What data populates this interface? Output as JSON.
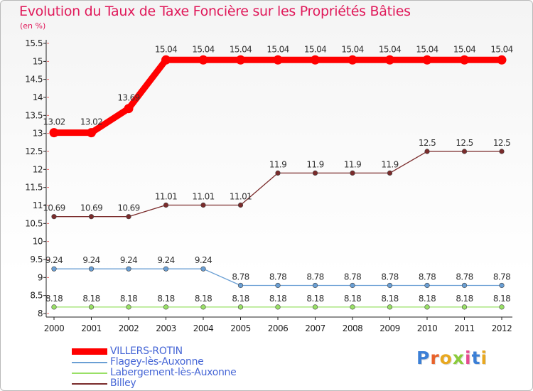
{
  "chart_data": {
    "type": "line",
    "title": "Evolution du Taux de Taxe Foncière sur les Propriétés Bâties",
    "unit_label": "(en %)",
    "categories": [
      "2000",
      "2001",
      "2002",
      "2003",
      "2004",
      "2005",
      "2006",
      "2007",
      "2008",
      "2009",
      "2010",
      "2011",
      "2012"
    ],
    "ylim": [
      8,
      15.5
    ],
    "yticks": [
      8,
      8.5,
      9,
      9.5,
      10,
      10.5,
      11,
      11.5,
      12,
      12.5,
      13,
      13.5,
      14,
      14.5,
      15,
      15.5
    ],
    "ytick_labels": [
      "8",
      "8.5",
      "9",
      "9.5",
      "10",
      "10.5",
      "11",
      "11.5",
      "12",
      "12.5",
      "13",
      "13.5",
      "14",
      "14.5",
      "15",
      "15.5"
    ],
    "series": [
      {
        "name": "VILLERS-ROTIN",
        "color": "#ff0000",
        "values": [
          13.02,
          13.02,
          13.69,
          15.04,
          15.04,
          15.04,
          15.04,
          15.04,
          15.04,
          15.04,
          15.04,
          15.04,
          15.04
        ],
        "labels": [
          "13.02",
          "13.02",
          "13.69",
          "15.04",
          "15.04",
          "15.04",
          "15.04",
          "15.04",
          "15.04",
          "15.04",
          "15.04",
          "15.04",
          "15.04"
        ]
      },
      {
        "name": "Flagey-lès-Auxonne",
        "color": "#6a9fd4",
        "values": [
          9.24,
          9.24,
          9.24,
          9.24,
          9.24,
          8.78,
          8.78,
          8.78,
          8.78,
          8.78,
          8.78,
          8.78,
          8.78
        ],
        "labels": [
          "9.24",
          "9.24",
          "9.24",
          "9.24",
          "9.24",
          "8.78",
          "8.78",
          "8.78",
          "8.78",
          "8.78",
          "8.78",
          "8.78",
          "8.78"
        ]
      },
      {
        "name": "Labergement-lès-Auxonne",
        "color": "#99e066",
        "values": [
          8.18,
          8.18,
          8.18,
          8.18,
          8.18,
          8.18,
          8.18,
          8.18,
          8.18,
          8.18,
          8.18,
          8.18,
          8.18
        ],
        "labels": [
          "8.18",
          "8.18",
          "8.18",
          "8.18",
          "8.18",
          "8.18",
          "8.18",
          "8.18",
          "8.18",
          "8.18",
          "8.18",
          "8.18",
          "8.18"
        ]
      },
      {
        "name": "Billey",
        "color": "#7a2b2b",
        "values": [
          10.69,
          10.69,
          10.69,
          11.01,
          11.01,
          11.01,
          11.9,
          11.9,
          11.9,
          11.9,
          12.5,
          12.5,
          12.5
        ],
        "labels": [
          "10.69",
          "10.69",
          "10.69",
          "11.01",
          "11.01",
          "11.01",
          "11.9",
          "11.9",
          "11.9",
          "11.9",
          "12.5",
          "12.5",
          "12.5"
        ]
      }
    ],
    "grid": false,
    "legend_position": "bottom-left"
  },
  "logo": {
    "text": "Proxiti",
    "letter_colors": [
      "#3b7fd6",
      "#e8622a",
      "#e8a820",
      "#8acb3c",
      "#e64b8f",
      "#3b7fd6",
      "#e8a820"
    ]
  }
}
